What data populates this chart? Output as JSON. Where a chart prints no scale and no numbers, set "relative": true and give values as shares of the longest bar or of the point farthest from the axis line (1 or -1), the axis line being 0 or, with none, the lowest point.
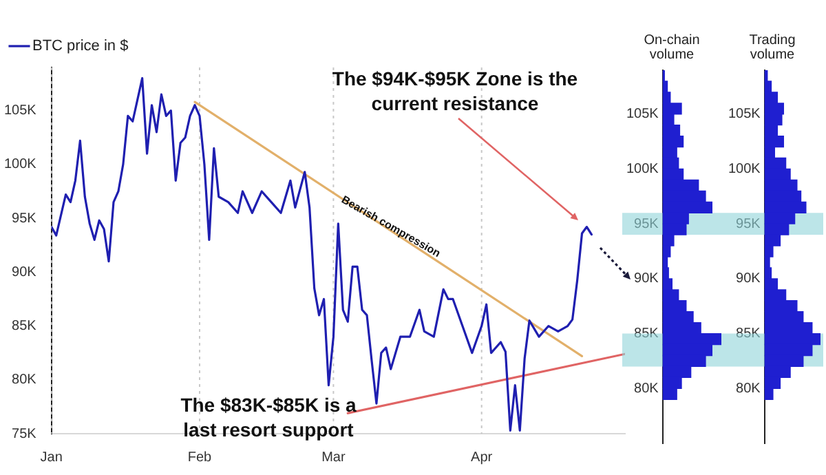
{
  "chart_data": [
    {
      "type": "line",
      "legend": "top left",
      "grid": "x",
      "xlim": [
        "--01-01",
        "--05-01"
      ],
      "xticks": [
        {
          "value": "--01-01",
          "label": "Jan"
        },
        {
          "value": "--02-01",
          "label": "Feb"
        },
        {
          "value": "--03-01",
          "label": "Mar"
        },
        {
          "value": "--04-01",
          "label": "Apr"
        }
      ],
      "ylim": [
        75000,
        109000
      ],
      "yticks": [
        {
          "value": 75000,
          "label": "75K"
        },
        {
          "value": 80000,
          "label": "80K"
        },
        {
          "value": 85000,
          "label": "85K"
        },
        {
          "value": 90000,
          "label": "90K"
        },
        {
          "value": 95000,
          "label": "95K"
        },
        {
          "value": 100000,
          "label": "100K"
        },
        {
          "value": 105000,
          "label": "105K"
        }
      ],
      "annotations": [
        "The $94K-$95K Zone is the current resistance",
        "The $83K-$85K is a last resort support",
        {
          "text": "Bearish compression",
          "x": "--03-13",
          "y": 94200
        }
      ],
      "series": [
        {
          "name": "BTC price in $",
          "color": "#1f1fb0",
          "x": [
            "--01-01",
            "--01-02",
            "--01-04",
            "--01-05",
            "--01-06",
            "--01-07",
            "--01-08",
            "--01-09",
            "--01-10",
            "--01-11",
            "--01-12",
            "--01-13",
            "--01-14",
            "--01-15",
            "--01-16",
            "--01-17",
            "--01-18",
            "--01-19",
            "--01-20",
            "--01-21",
            "--01-22",
            "--01-23",
            "--01-24",
            "--01-25",
            "--01-26",
            "--01-27",
            "--01-28",
            "--01-29",
            "--01-30",
            "--01-31",
            "--02-01",
            "--02-02",
            "--02-03",
            "--02-04",
            "--02-05",
            "--02-07",
            "--02-09",
            "--02-10",
            "--02-12",
            "--02-14",
            "--02-16",
            "--02-18",
            "--02-20",
            "--02-21",
            "--02-23",
            "--02-24",
            "--02-25",
            "--02-26",
            "--02-27",
            "--02-28",
            "--03-01",
            "--03-02",
            "--03-03",
            "--03-04",
            "--03-05",
            "--03-06",
            "--03-07",
            "--03-08",
            "--03-09",
            "--03-10",
            "--03-11",
            "--03-12",
            "--03-13",
            "--03-15",
            "--03-17",
            "--03-19",
            "--03-20",
            "--03-22",
            "--03-24",
            "--03-25",
            "--03-26",
            "--03-28",
            "--03-30",
            "--04-01",
            "--04-02",
            "--04-03",
            "--04-05",
            "--04-06",
            "--04-07",
            "--04-08",
            "--04-09",
            "--04-10",
            "--04-11",
            "--04-13",
            "--04-15",
            "--04-17",
            "--04-19",
            "--04-20",
            "--04-21",
            "--04-22",
            "--04-23",
            "--04-24"
          ],
          "values": [
            94200,
            93400,
            97200,
            96500,
            98500,
            102200,
            97000,
            94500,
            93000,
            94800,
            94000,
            91000,
            96500,
            97500,
            100000,
            104500,
            104000,
            106000,
            108000,
            101000,
            105500,
            103000,
            106500,
            104500,
            105000,
            98500,
            102000,
            102500,
            104500,
            105500,
            104500,
            100000,
            93000,
            101500,
            97000,
            96500,
            95500,
            97500,
            95500,
            97500,
            96500,
            95500,
            98500,
            96000,
            99300,
            96000,
            88500,
            86000,
            87500,
            79500,
            84000,
            94500,
            86500,
            85400,
            90500,
            90500,
            86500,
            86000,
            81800,
            77800,
            82500,
            83000,
            81000,
            84000,
            84000,
            86500,
            84500,
            84000,
            88400,
            87500,
            87500,
            85000,
            82500,
            85000,
            87000,
            82500,
            83500,
            82600,
            75300,
            79500,
            75300,
            82000,
            85500,
            84000,
            85000,
            84500,
            85000,
            85600,
            89200,
            93600,
            94200,
            93500
          ]
        },
        {
          "type": "line",
          "color": "#e2b06a",
          "x": [
            "--01-31",
            "--04-22"
          ],
          "values": [
            105800,
            82200
          ]
        },
        {
          "type": "line",
          "color": "#e06464",
          "x": [
            "--03-04",
            "--05-01"
          ],
          "values": [
            76900,
            82400
          ]
        }
      ]
    },
    {
      "type": "bar",
      "orientation": "horizontal",
      "relative": true,
      "title": "On-chain volume",
      "tick_labels": "y",
      "ylim": [
        75000,
        109000
      ],
      "yticks": [
        {
          "value": 80000,
          "label": "80K"
        },
        {
          "value": 85000,
          "label": "85K"
        },
        {
          "value": 90000,
          "label": "90K"
        },
        {
          "value": 95000,
          "label": "95K"
        },
        {
          "value": 100000,
          "label": "100K"
        },
        {
          "value": 105000,
          "label": "105K"
        }
      ],
      "bands": [
        {
          "axis": "y",
          "from": 94000,
          "to": 96000,
          "color": "#8fd3d8"
        },
        {
          "axis": "y",
          "from": 82000,
          "to": 85000,
          "color": "#8fd3d8"
        }
      ],
      "x": [
        108500,
        107500,
        106500,
        105500,
        104500,
        103500,
        102500,
        101500,
        100500,
        99500,
        98500,
        97500,
        96500,
        95500,
        94500,
        93500,
        92500,
        91500,
        90500,
        89500,
        88500,
        87500,
        86500,
        85500,
        84500,
        83500,
        82500,
        81500,
        80500,
        79500
      ],
      "color": "#1f1fd0",
      "values": [
        0.03,
        0.08,
        0.13,
        0.32,
        0.19,
        0.29,
        0.35,
        0.24,
        0.27,
        0.35,
        0.61,
        0.73,
        0.84,
        0.44,
        0.4,
        0.19,
        0.13,
        0.08,
        0.1,
        0.16,
        0.27,
        0.4,
        0.52,
        0.65,
        1,
        0.84,
        0.73,
        0.48,
        0.32,
        0.24
      ]
    },
    {
      "type": "bar",
      "orientation": "horizontal",
      "relative": true,
      "title": "Trading volume",
      "tick_labels": "y",
      "ylim": [
        75000,
        109000
      ],
      "yticks": [
        {
          "value": 80000,
          "label": "80K"
        },
        {
          "value": 85000,
          "label": "85K"
        },
        {
          "value": 90000,
          "label": "90K"
        },
        {
          "value": 95000,
          "label": "95K"
        },
        {
          "value": 100000,
          "label": "100K"
        },
        {
          "value": 105000,
          "label": "105K"
        }
      ],
      "bands": [
        {
          "axis": "y",
          "from": 94000,
          "to": 96000,
          "color": "#8fd3d8"
        },
        {
          "axis": "y",
          "from": 82000,
          "to": 85000,
          "color": "#8fd3d8"
        }
      ],
      "x": [
        108500,
        107500,
        106500,
        105500,
        104500,
        103500,
        102500,
        101500,
        100500,
        99500,
        98500,
        97500,
        96500,
        95500,
        94500,
        93500,
        92500,
        91500,
        90500,
        89500,
        88500,
        87500,
        86500,
        85500,
        84500,
        83500,
        82500,
        81500,
        80500,
        79500
      ],
      "color": "#1f1fd0",
      "values": [
        0.05,
        0.12,
        0.23,
        0.34,
        0.31,
        0.23,
        0.34,
        0.18,
        0.38,
        0.46,
        0.58,
        0.65,
        0.74,
        0.54,
        0.43,
        0.28,
        0.15,
        0.09,
        0.12,
        0.23,
        0.38,
        0.58,
        0.69,
        0.85,
        1,
        0.85,
        0.69,
        0.46,
        0.28,
        0.15
      ]
    }
  ]
}
